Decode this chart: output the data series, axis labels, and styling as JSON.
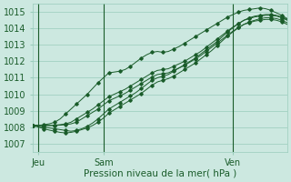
{
  "background_color": "#cce8e0",
  "grid_color": "#99ccbb",
  "line_color": "#1a5c2a",
  "marker_color": "#1a5c2a",
  "title": "Pression niveau de la mer( hPa )",
  "ylabel_ticks": [
    1007,
    1008,
    1009,
    1010,
    1011,
    1012,
    1013,
    1014,
    1015
  ],
  "ylim": [
    1006.5,
    1015.5
  ],
  "xlim": [
    0,
    47
  ],
  "xtick_positions": [
    1,
    13,
    37
  ],
  "xtick_labels": [
    "Jeu",
    "Sam",
    "Ven"
  ],
  "n_points": 48,
  "series": [
    [
      1008.1,
      1008.1,
      1008.15,
      1008.2,
      1008.3,
      1008.5,
      1008.8,
      1009.1,
      1009.4,
      1009.7,
      1010.0,
      1010.35,
      1010.7,
      1011.0,
      1011.3,
      1011.35,
      1011.4,
      1011.5,
      1011.7,
      1011.95,
      1012.2,
      1012.4,
      1012.55,
      1012.6,
      1012.55,
      1012.6,
      1012.75,
      1012.9,
      1013.1,
      1013.3,
      1013.5,
      1013.7,
      1013.9,
      1014.1,
      1014.3,
      1014.5,
      1014.7,
      1014.85,
      1015.0,
      1015.1,
      1015.15,
      1015.2,
      1015.25,
      1015.2,
      1015.1,
      1014.95,
      1014.8,
      1014.6
    ],
    [
      1008.1,
      1008.05,
      1008.0,
      1007.95,
      1007.9,
      1007.85,
      1007.8,
      1007.75,
      1007.8,
      1007.9,
      1008.05,
      1008.25,
      1008.5,
      1008.8,
      1009.1,
      1009.3,
      1009.5,
      1009.7,
      1009.9,
      1010.1,
      1010.35,
      1010.6,
      1010.85,
      1011.0,
      1011.1,
      1011.2,
      1011.4,
      1011.6,
      1011.8,
      1012.0,
      1012.2,
      1012.45,
      1012.7,
      1012.95,
      1013.2,
      1013.5,
      1013.8,
      1014.05,
      1014.3,
      1014.5,
      1014.65,
      1014.75,
      1014.8,
      1014.85,
      1014.85,
      1014.8,
      1014.7,
      1014.55
    ],
    [
      1008.1,
      1008.1,
      1008.1,
      1008.1,
      1008.12,
      1008.15,
      1008.2,
      1008.3,
      1008.5,
      1008.7,
      1008.9,
      1009.1,
      1009.35,
      1009.6,
      1009.85,
      1010.0,
      1010.15,
      1010.3,
      1010.5,
      1010.7,
      1010.9,
      1011.1,
      1011.3,
      1011.45,
      1011.5,
      1011.55,
      1011.7,
      1011.85,
      1012.0,
      1012.2,
      1012.4,
      1012.6,
      1012.85,
      1013.1,
      1013.35,
      1013.6,
      1013.85,
      1014.1,
      1014.3,
      1014.5,
      1014.6,
      1014.7,
      1014.75,
      1014.8,
      1014.8,
      1014.75,
      1014.65,
      1014.5
    ],
    [
      1008.1,
      1008.1,
      1008.1,
      1008.1,
      1008.1,
      1008.12,
      1008.15,
      1008.2,
      1008.3,
      1008.5,
      1008.7,
      1008.9,
      1009.1,
      1009.35,
      1009.6,
      1009.75,
      1009.9,
      1010.05,
      1010.25,
      1010.45,
      1010.65,
      1010.85,
      1011.05,
      1011.2,
      1011.25,
      1011.3,
      1011.45,
      1011.6,
      1011.75,
      1011.95,
      1012.15,
      1012.35,
      1012.6,
      1012.85,
      1013.1,
      1013.35,
      1013.6,
      1013.85,
      1014.05,
      1014.25,
      1014.35,
      1014.45,
      1014.5,
      1014.55,
      1014.55,
      1014.5,
      1014.4,
      1014.25
    ],
    [
      1008.1,
      1008.0,
      1007.9,
      1007.82,
      1007.75,
      1007.68,
      1007.65,
      1007.68,
      1007.75,
      1007.85,
      1007.95,
      1008.1,
      1008.3,
      1008.55,
      1008.85,
      1009.05,
      1009.25,
      1009.45,
      1009.65,
      1009.85,
      1010.05,
      1010.3,
      1010.55,
      1010.75,
      1010.85,
      1010.95,
      1011.1,
      1011.3,
      1011.5,
      1011.7,
      1011.9,
      1012.15,
      1012.4,
      1012.65,
      1012.95,
      1013.25,
      1013.55,
      1013.8,
      1014.05,
      1014.25,
      1014.4,
      1014.5,
      1014.6,
      1014.65,
      1014.65,
      1014.6,
      1014.5,
      1014.35
    ]
  ],
  "marker_series": [
    0,
    1,
    2,
    3,
    4
  ],
  "marker_interval": 2,
  "vline_positions": [
    1,
    13,
    37
  ],
  "vline_color": "#1a5c2a"
}
